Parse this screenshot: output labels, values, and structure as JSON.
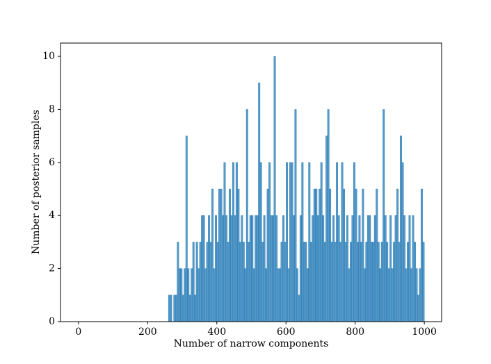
{
  "chart_data": {
    "type": "histogram",
    "xlabel": "Number of narrow components",
    "ylabel": "Number of posterior samples",
    "color": "#1f77b4",
    "bins": [
      260,
      265,
      270,
      275,
      280,
      285,
      290,
      295,
      300,
      305,
      310,
      315,
      320,
      325,
      330,
      335,
      340,
      345,
      350,
      355,
      360,
      365,
      370,
      375,
      380,
      385,
      390,
      395,
      400,
      405,
      410,
      415,
      420,
      425,
      430,
      435,
      440,
      445,
      450,
      455,
      460,
      465,
      470,
      475,
      480,
      485,
      490,
      495,
      500,
      505,
      510,
      515,
      520,
      525,
      530,
      535,
      540,
      545,
      550,
      555,
      560,
      565,
      570,
      575,
      580,
      585,
      590,
      595,
      600,
      605,
      610,
      615,
      620,
      625,
      630,
      635,
      640,
      645,
      650,
      655,
      660,
      665,
      670,
      675,
      680,
      685,
      690,
      695,
      700,
      705,
      710,
      715,
      720,
      725,
      730,
      735,
      740,
      745,
      750,
      755,
      760,
      765,
      770,
      775,
      780,
      785,
      790,
      795,
      800,
      805,
      810,
      815,
      820,
      825,
      830,
      835,
      840,
      845,
      850,
      855,
      860,
      865,
      870,
      875,
      880,
      885,
      890,
      895,
      900,
      905,
      910,
      915,
      920,
      925,
      930,
      935,
      940,
      945,
      950,
      955,
      960,
      965,
      970,
      975,
      980,
      985,
      990,
      995,
      1000
    ],
    "values": [
      1,
      1,
      0,
      1,
      1,
      3,
      2,
      2,
      1,
      2,
      7,
      2,
      1,
      2,
      3,
      1,
      3,
      2,
      3,
      4,
      4,
      2,
      3,
      4,
      3,
      5,
      2,
      4,
      3,
      5,
      5,
      4,
      6,
      4,
      3,
      5,
      4,
      6,
      4,
      6,
      5,
      3,
      4,
      3,
      2,
      8,
      3,
      4,
      4,
      2,
      4,
      4,
      9,
      6,
      3,
      4,
      2,
      5,
      6,
      4,
      4,
      10,
      4,
      2,
      2,
      3,
      4,
      3,
      6,
      2,
      6,
      6,
      4,
      8,
      2,
      1,
      4,
      6,
      3,
      3,
      2,
      6,
      3,
      4,
      5,
      5,
      4,
      5,
      6,
      4,
      3,
      7,
      8,
      5,
      3,
      4,
      3,
      6,
      4,
      3,
      6,
      5,
      3,
      4,
      2,
      3,
      4,
      6,
      5,
      3,
      4,
      3,
      5,
      2,
      3,
      4,
      4,
      3,
      3,
      4,
      5,
      3,
      2,
      3,
      8,
      4,
      3,
      2,
      4,
      2,
      3,
      4,
      5,
      3,
      7,
      6,
      4,
      2,
      3,
      4,
      2,
      4,
      3,
      2,
      1,
      2,
      5,
      3
    ],
    "xlim": [
      -52,
      1050
    ],
    "xticks": [
      0,
      200,
      400,
      600,
      800,
      1000
    ],
    "ylim": [
      0,
      10.5
    ],
    "yticks": [
      0,
      2,
      4,
      6,
      8,
      10
    ]
  }
}
